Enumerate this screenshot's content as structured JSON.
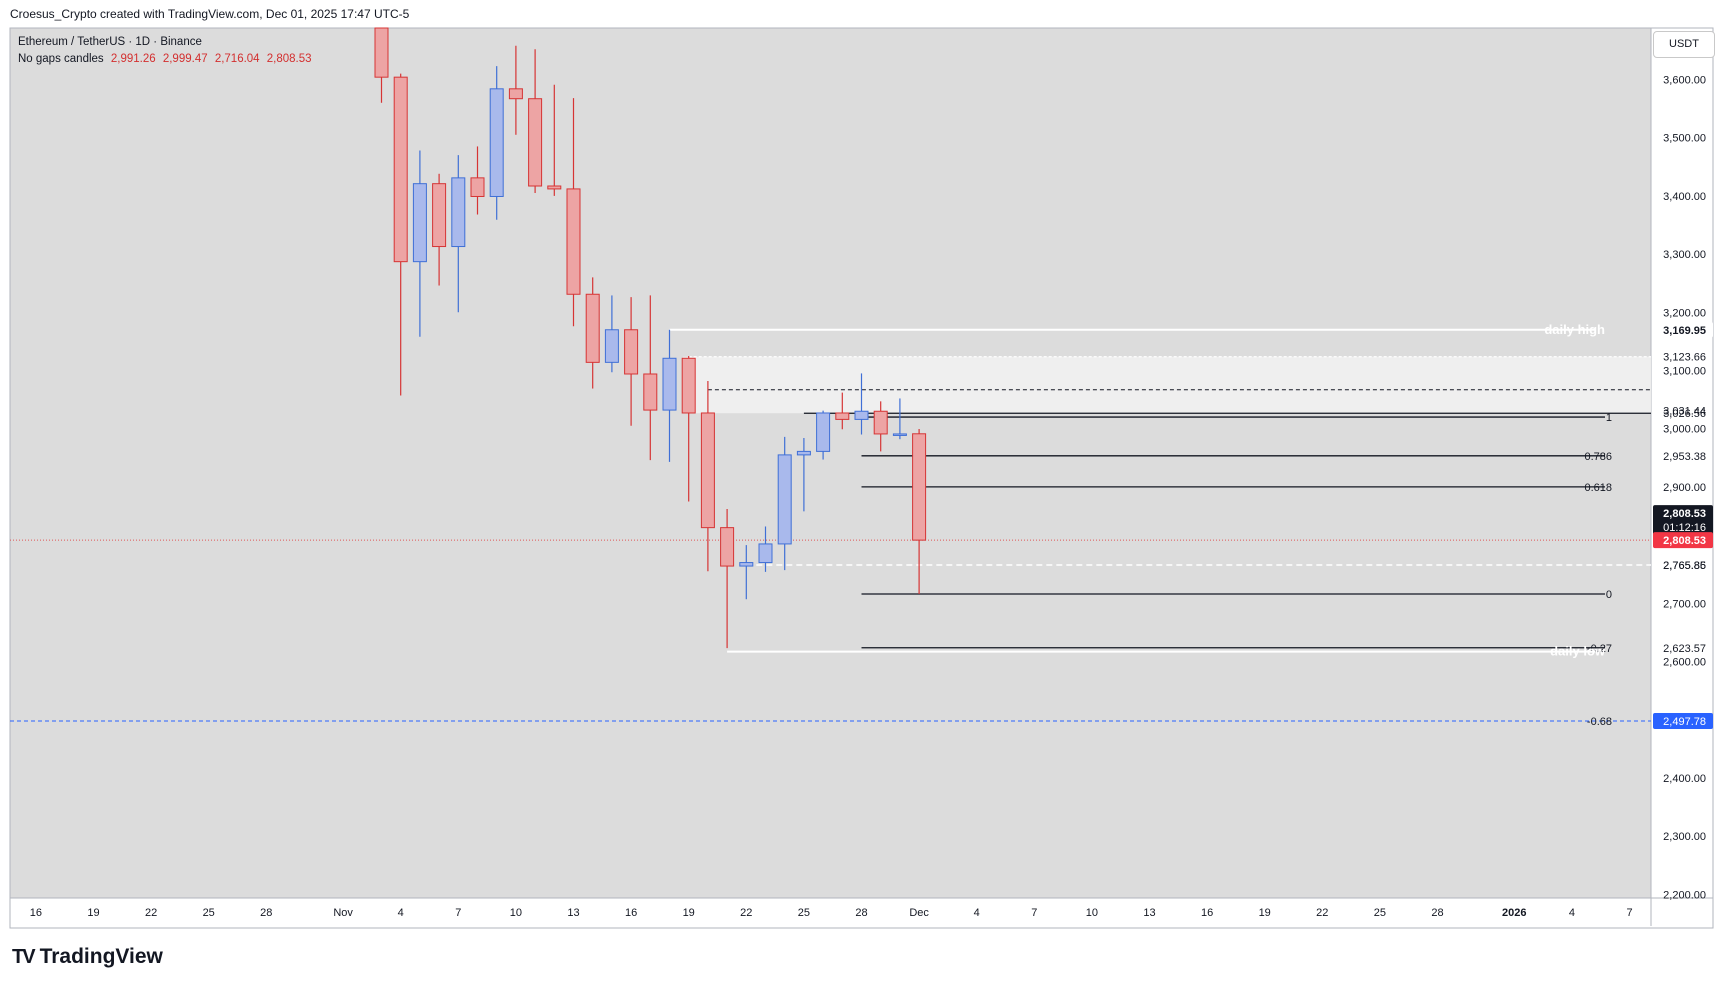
{
  "header": {
    "credit": "Croesus_Crypto created with TradingView.com, Dec 01, 2025 17:47 UTC-5"
  },
  "legend": {
    "symbol_line": "Ethereum / TetherUS · 1D · Binance",
    "style_label": "No gaps candles",
    "ohlc": [
      "2,991.26",
      "2,999.47",
      "2,716.04",
      "2,808.53"
    ]
  },
  "currency_button": "USDT",
  "brand": {
    "name": "TradingView",
    "logo": "TV"
  },
  "colors": {
    "background": "#dcdcdc",
    "up_body": "#a9b9ec",
    "up_border": "#3f6fd6",
    "down_body": "#eda4a4",
    "down_border": "#d63434",
    "current_price_tag": "#f23645",
    "blue_level": "#2962ff"
  },
  "chart_data": {
    "type": "candlestick",
    "symbol": "Ethereum / TetherUS",
    "interval": "1D",
    "exchange": "Binance",
    "ylim": [
      2180,
      3680
    ],
    "y_ticks": [
      "3,600.00",
      "3,500.00",
      "3,400.00",
      "3,300.00",
      "3,200.00",
      "3,100.00",
      "3,000.00",
      "2,900.00",
      "2,700.00",
      "2,600.00",
      "2,400.00",
      "2,300.00",
      "2,200.00"
    ],
    "x_ticks": [
      "16",
      "19",
      "22",
      "25",
      "28",
      "Nov",
      "4",
      "7",
      "10",
      "13",
      "16",
      "19",
      "22",
      "25",
      "28",
      "Dec",
      "4",
      "7",
      "10",
      "13",
      "16",
      "19",
      "22",
      "25",
      "28",
      "2026",
      "4",
      "7"
    ],
    "candles": [
      {
        "date": "Nov 03",
        "open": 3702,
        "high": 3725,
        "low": 3560,
        "close": 3604
      },
      {
        "date": "Nov 04",
        "open": 3604,
        "high": 3610,
        "low": 3057,
        "close": 3287
      },
      {
        "date": "Nov 05",
        "open": 3287,
        "high": 3478,
        "low": 3158,
        "close": 3421
      },
      {
        "date": "Nov 06",
        "open": 3421,
        "high": 3438,
        "low": 3246,
        "close": 3313
      },
      {
        "date": "Nov 07",
        "open": 3313,
        "high": 3470,
        "low": 3200,
        "close": 3431
      },
      {
        "date": "Nov 08",
        "open": 3431,
        "high": 3485,
        "low": 3368,
        "close": 3399
      },
      {
        "date": "Nov 09",
        "open": 3399,
        "high": 3623,
        "low": 3359,
        "close": 3584
      },
      {
        "date": "Nov 10",
        "open": 3584,
        "high": 3658,
        "low": 3505,
        "close": 3567
      },
      {
        "date": "Nov 11",
        "open": 3567,
        "high": 3652,
        "low": 3405,
        "close": 3417
      },
      {
        "date": "Nov 12",
        "open": 3417,
        "high": 3591,
        "low": 3400,
        "close": 3412
      },
      {
        "date": "Nov 13",
        "open": 3412,
        "high": 3568,
        "low": 3176,
        "close": 3231
      },
      {
        "date": "Nov 14",
        "open": 3231,
        "high": 3260,
        "low": 3069,
        "close": 3114
      },
      {
        "date": "Nov 15",
        "open": 3114,
        "high": 3229,
        "low": 3097,
        "close": 3170
      },
      {
        "date": "Nov 16",
        "open": 3170,
        "high": 3226,
        "low": 3005,
        "close": 3094
      },
      {
        "date": "Nov 17",
        "open": 3094,
        "high": 3229,
        "low": 2946,
        "close": 3032
      },
      {
        "date": "Nov 18",
        "open": 3032,
        "high": 3170,
        "low": 2943,
        "close": 3121
      },
      {
        "date": "Nov 19",
        "open": 3121,
        "high": 3125,
        "low": 2875,
        "close": 3027
      },
      {
        "date": "Nov 20",
        "open": 3027,
        "high": 3082,
        "low": 2755,
        "close": 2830
      },
      {
        "date": "Nov 21",
        "open": 2830,
        "high": 2862,
        "low": 2623,
        "close": 2764
      },
      {
        "date": "Nov 22",
        "open": 2764,
        "high": 2800,
        "low": 2707,
        "close": 2770
      },
      {
        "date": "Nov 23",
        "open": 2770,
        "high": 2832,
        "low": 2754,
        "close": 2802
      },
      {
        "date": "Nov 24",
        "open": 2802,
        "high": 2986,
        "low": 2757,
        "close": 2955
      },
      {
        "date": "Nov 25",
        "open": 2955,
        "high": 2984,
        "low": 2858,
        "close": 2961
      },
      {
        "date": "Nov 26",
        "open": 2961,
        "high": 3031,
        "low": 2947,
        "close": 3027
      },
      {
        "date": "Nov 27",
        "open": 3027,
        "high": 3062,
        "low": 2999,
        "close": 3016
      },
      {
        "date": "Nov 28",
        "open": 3016,
        "high": 3095,
        "low": 2990,
        "close": 3030
      },
      {
        "date": "Nov 29",
        "open": 3030,
        "high": 3047,
        "low": 2961,
        "close": 2991
      },
      {
        "date": "Nov 30",
        "open": 2991,
        "high": 3052,
        "low": 2982,
        "close": 2991
      },
      {
        "date": "Dec 01",
        "open": 2991.26,
        "high": 2999.47,
        "low": 2716.04,
        "close": 2808.53
      }
    ],
    "levels": [
      {
        "price": 3169.95,
        "label": "daily high",
        "tag": "3,169.95",
        "style": "white-solid",
        "from": "Nov 18"
      },
      {
        "price": 3123.66,
        "tag": "3,123.66",
        "style": "zone-top",
        "from": "Nov 19"
      },
      {
        "price": 3067,
        "style": "black-dashed",
        "from": "Nov 20"
      },
      {
        "price": 3031.44,
        "tag": "3,031.44",
        "style": "none"
      },
      {
        "price": 3026.56,
        "tag": "3,026.56",
        "style": "zone-bottom",
        "from": "Nov 25"
      },
      {
        "price": 3020,
        "fib": "1",
        "style": "black-solid",
        "from": "Nov 28"
      },
      {
        "price": 2953.38,
        "fib": "0.786",
        "tag": "2,953.38",
        "style": "black-solid",
        "from": "Nov 28"
      },
      {
        "price": 2900,
        "fib": "0.618",
        "style": "black-solid",
        "from": "Nov 28"
      },
      {
        "price": 2765.86,
        "tag": "2,765.86",
        "style": "white-dashed",
        "from": "Nov 22"
      },
      {
        "price": 2765.85,
        "tag": "2,765.85",
        "style": "none"
      },
      {
        "price": 2716,
        "fib": "0",
        "style": "black-solid",
        "from": "Nov 28"
      },
      {
        "price": 2623.57,
        "fib": "-0.27",
        "tag": "2,623.57",
        "style": "black-solid",
        "from": "Nov 28"
      },
      {
        "price": 2617,
        "label": "daily low",
        "style": "white-solid",
        "from": "Nov 21"
      },
      {
        "price": 2497.78,
        "fib": "-0.68",
        "tag": "2,497.78",
        "style": "blue-dashed",
        "from": "start"
      }
    ],
    "current": {
      "price": "2,808.53",
      "countdown": "01:12:16"
    }
  }
}
